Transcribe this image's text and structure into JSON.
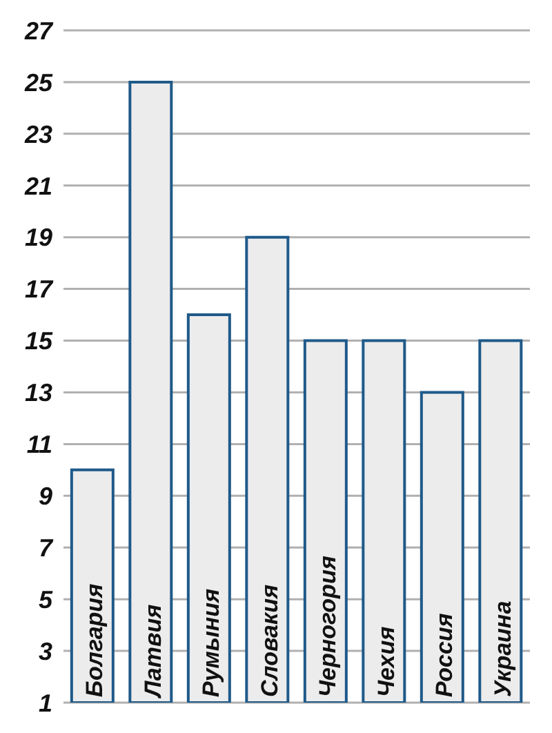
{
  "chart_data": {
    "type": "bar",
    "categories": [
      "Болгария",
      "Латвия",
      "Румыния",
      "Словакия",
      "Черногория",
      "Чехия",
      "Россия",
      "Украина"
    ],
    "values": [
      10,
      25,
      16,
      19,
      15,
      15,
      13,
      15
    ],
    "color": "#ececec",
    "ylim": [
      1,
      27
    ],
    "yticks": [
      1,
      3,
      5,
      7,
      9,
      11,
      13,
      15,
      17,
      19,
      21,
      23,
      25,
      27
    ],
    "grid": "y"
  }
}
